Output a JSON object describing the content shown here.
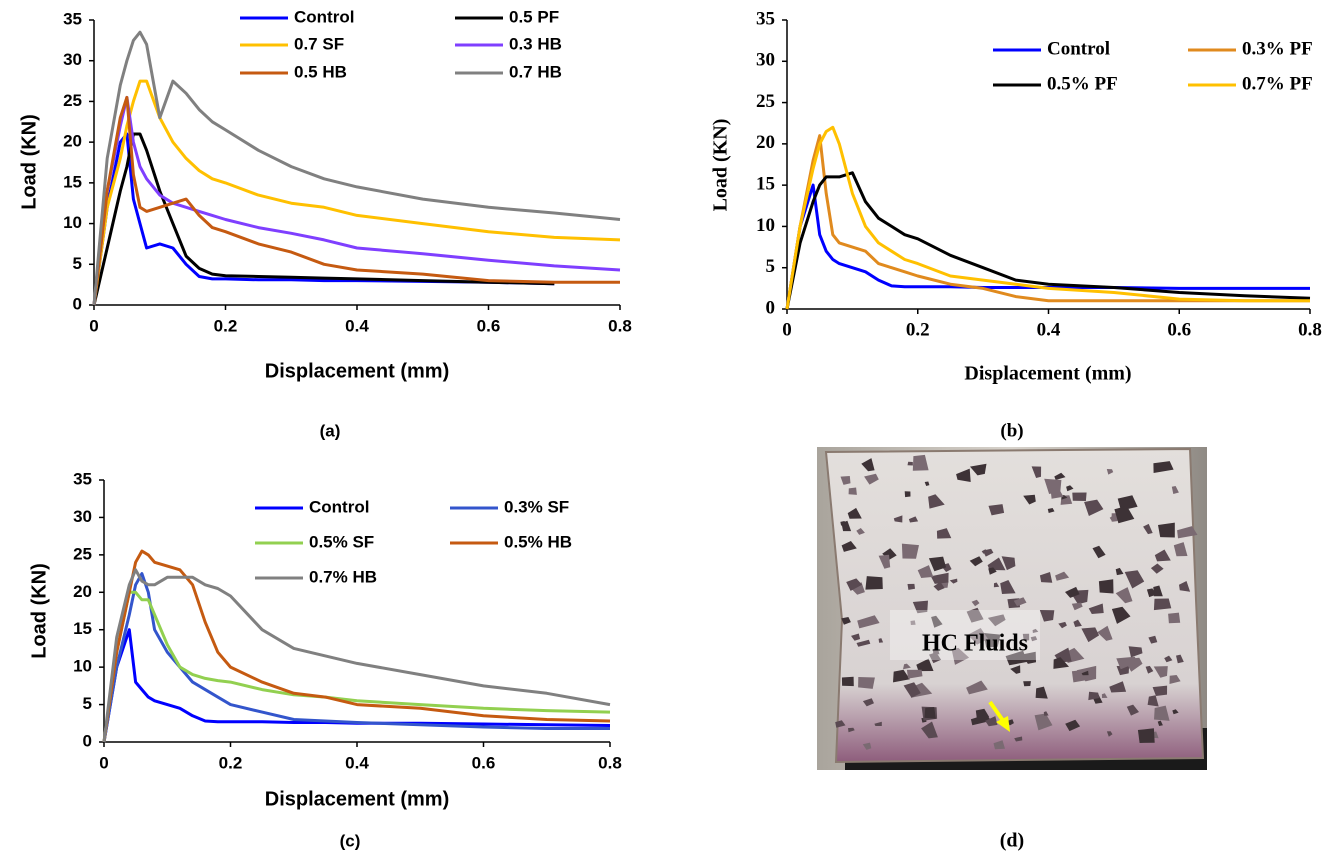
{
  "chart_data": [
    {
      "type": "line",
      "caption": "(a)",
      "x_label": "Displacement (mm)",
      "y_label": "Load (KN)",
      "xlim": [
        0,
        0.8
      ],
      "xticks": [
        0,
        0.2,
        0.4,
        0.6,
        0.8
      ],
      "ylim": [
        0,
        35
      ],
      "yticks": [
        0,
        5,
        10,
        15,
        20,
        25,
        30,
        35
      ],
      "grid": false,
      "x": [
        0,
        0.02,
        0.04,
        0.05,
        0.06,
        0.07,
        0.08,
        0.1,
        0.12,
        0.14,
        0.16,
        0.18,
        0.2,
        0.25,
        0.3,
        0.35,
        0.4,
        0.5,
        0.6,
        0.7,
        0.8
      ],
      "series": [
        {
          "name": "Control",
          "color": "#0000ff",
          "values": [
            0,
            12,
            20,
            21,
            13,
            10,
            7,
            7.5,
            7,
            5,
            3.5,
            3.2,
            3.2,
            3.1,
            3.1,
            3,
            3,
            2.9,
            2.8,
            2.6,
            null
          ]
        },
        {
          "name": "0.5 PF",
          "color": "#000000",
          "values": [
            0,
            7,
            14,
            17,
            21,
            21,
            19,
            14,
            10,
            6,
            4.5,
            3.8,
            3.6,
            3.5,
            3.4,
            3.3,
            3.2,
            3,
            2.8,
            2.6,
            null
          ]
        },
        {
          "name": "0.7 SF",
          "color": "#ffc000",
          "values": [
            0,
            12,
            18,
            22,
            25,
            27.5,
            27.5,
            23,
            20,
            18,
            16.5,
            15.5,
            15,
            13.5,
            12.5,
            12,
            11,
            10,
            9,
            8.3,
            8
          ]
        },
        {
          "name": "0.3 HB",
          "color": "#7f3fff",
          "values": [
            0,
            14,
            22,
            25.5,
            20,
            17,
            15.5,
            13.5,
            12.5,
            12,
            11.5,
            11,
            10.5,
            9.5,
            8.8,
            8,
            7,
            6.3,
            5.5,
            4.8,
            4.3
          ]
        },
        {
          "name": "0.5 HB",
          "color": "#c55a11",
          "values": [
            0,
            14,
            23,
            25.5,
            16,
            12,
            11.5,
            12,
            12.5,
            13,
            11,
            9.5,
            9,
            7.5,
            6.5,
            5,
            4.3,
            3.8,
            3,
            2.8,
            2.8
          ]
        },
        {
          "name": "0.7 HB",
          "color": "#808080",
          "values": [
            0,
            18,
            27,
            30,
            32.5,
            33.5,
            32,
            23,
            27.5,
            26,
            24,
            22.5,
            21.5,
            19,
            17,
            15.5,
            14.5,
            13,
            12,
            11.3,
            10.5
          ]
        }
      ]
    },
    {
      "type": "line",
      "caption": "(b)",
      "x_label": "Displacement (mm)",
      "y_label": "Load (KN)",
      "xlim": [
        0,
        0.8
      ],
      "xticks": [
        0,
        0.2,
        0.4,
        0.6,
        0.8
      ],
      "ylim": [
        0,
        35
      ],
      "yticks": [
        0,
        5,
        10,
        15,
        20,
        25,
        30,
        35
      ],
      "grid": false,
      "x": [
        0,
        0.02,
        0.04,
        0.05,
        0.06,
        0.07,
        0.08,
        0.1,
        0.12,
        0.14,
        0.16,
        0.18,
        0.2,
        0.25,
        0.3,
        0.35,
        0.4,
        0.5,
        0.6,
        0.7,
        0.8
      ],
      "series": [
        {
          "name": "Control",
          "color": "#0000ff",
          "values": [
            0,
            10,
            15,
            9,
            7,
            6,
            5.5,
            5,
            4.5,
            3.5,
            2.8,
            2.7,
            2.7,
            2.7,
            2.6,
            2.6,
            2.6,
            2.6,
            2.5,
            2.5,
            2.5
          ]
        },
        {
          "name": "0.3% PF",
          "color": "#e08a1e",
          "values": [
            0,
            10,
            18,
            21,
            14,
            9,
            8,
            7.5,
            7,
            5.5,
            5,
            4.5,
            4,
            3,
            2.5,
            1.5,
            1,
            1,
            1,
            1,
            1
          ]
        },
        {
          "name": "0.5% PF",
          "color": "#000000",
          "values": [
            0,
            8,
            13,
            15,
            16,
            16,
            16,
            16.5,
            13,
            11,
            10,
            9,
            8.5,
            6.5,
            5,
            3.5,
            3,
            2.6,
            2,
            1.6,
            1.3
          ]
        },
        {
          "name": "0.7% PF",
          "color": "#ffc000",
          "values": [
            0,
            10,
            17,
            20,
            21.5,
            22,
            20,
            14,
            10,
            8,
            7,
            6,
            5.5,
            4,
            3.5,
            3,
            2.5,
            2,
            1.2,
            1,
            1
          ]
        }
      ]
    },
    {
      "type": "line",
      "caption": "(c)",
      "x_label": "Displacement (mm)",
      "y_label": "Load (KN)",
      "xlim": [
        0,
        0.8
      ],
      "xticks": [
        0,
        0.2,
        0.4,
        0.6,
        0.8
      ],
      "ylim": [
        0,
        35
      ],
      "yticks": [
        0,
        5,
        10,
        15,
        20,
        25,
        30,
        35
      ],
      "grid": false,
      "x": [
        0,
        0.02,
        0.04,
        0.05,
        0.06,
        0.07,
        0.08,
        0.1,
        0.12,
        0.14,
        0.16,
        0.18,
        0.2,
        0.25,
        0.3,
        0.35,
        0.4,
        0.5,
        0.6,
        0.7,
        0.8
      ],
      "series": [
        {
          "name": "Control",
          "color": "#0000ff",
          "values": [
            0,
            10,
            15,
            8,
            7,
            6,
            5.5,
            5,
            4.5,
            3.5,
            2.8,
            2.7,
            2.7,
            2.7,
            2.6,
            2.6,
            2.5,
            2.5,
            2.4,
            2.3,
            2.2
          ]
        },
        {
          "name": "0.3% SF",
          "color": "#3355cc",
          "values": [
            0,
            10,
            17,
            21,
            22.5,
            20,
            15,
            12,
            10,
            8,
            7,
            6,
            5,
            4,
            3,
            2.8,
            2.6,
            2.3,
            2,
            1.8,
            1.8
          ]
        },
        {
          "name": "0.5% SF",
          "color": "#92d050",
          "values": [
            0,
            12,
            20,
            20,
            19,
            19,
            17,
            13,
            10,
            9,
            8.5,
            8.2,
            8,
            7,
            6.3,
            6,
            5.5,
            5,
            4.5,
            4.2,
            4
          ]
        },
        {
          "name": "0.5% HB",
          "color": "#c55a11",
          "values": [
            0,
            12,
            20,
            24,
            25.5,
            25,
            24,
            23.5,
            23,
            21,
            16,
            12,
            10,
            8,
            6.5,
            6,
            5,
            4.5,
            3.5,
            3,
            2.8
          ]
        },
        {
          "name": "0.7% HB",
          "color": "#808080",
          "values": [
            0,
            14,
            21,
            23,
            21.5,
            21,
            21,
            22,
            22,
            22,
            21,
            20.5,
            19.5,
            15,
            12.5,
            11.5,
            10.5,
            9,
            7.5,
            6.5,
            5
          ]
        }
      ]
    }
  ],
  "photo": {
    "label": "HC Fluids",
    "caption": "(d)"
  }
}
